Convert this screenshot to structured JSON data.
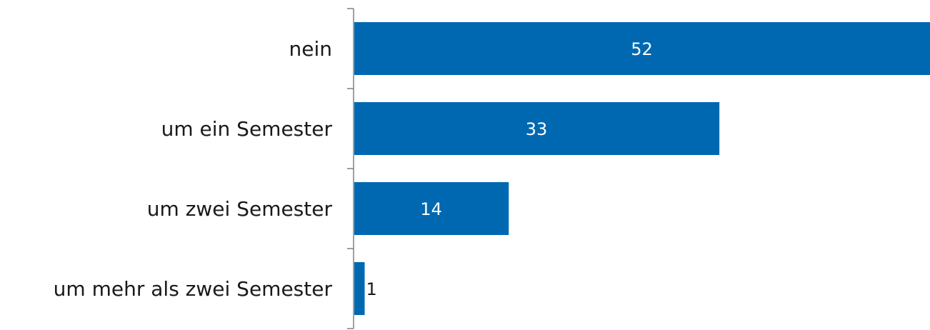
{
  "chart_data": {
    "type": "bar",
    "orientation": "horizontal",
    "categories": [
      "nein",
      "um ein Semester",
      "um zwei Semester",
      "um mehr als zwei Semester"
    ],
    "values": [
      52,
      33,
      14,
      1
    ],
    "title": "",
    "xlabel": "",
    "ylabel": "",
    "xlim": [
      0,
      52
    ],
    "grid": false,
    "legend": "none",
    "colors": {
      "bar": "#0068b1",
      "label_inside": "#ffffff",
      "label_outside": "#1a1a1a",
      "axis": "#808080"
    }
  }
}
